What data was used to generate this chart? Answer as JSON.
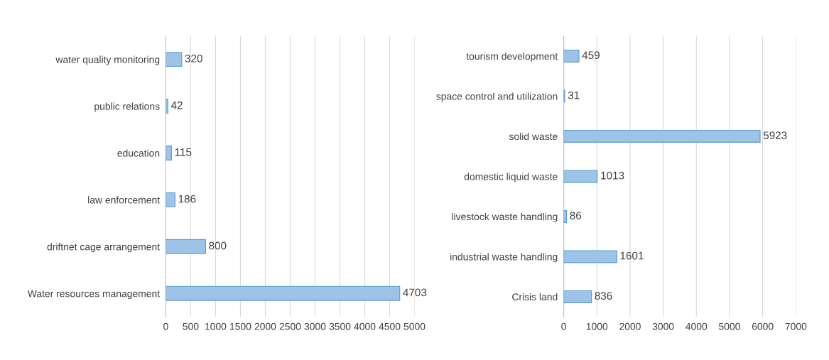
{
  "chart_data": [
    {
      "type": "bar",
      "orientation": "horizontal",
      "categories": [
        "water quality monitoring",
        "public relations",
        "education",
        "law enforcement",
        "driftnet cage arrangement",
        "Water resources management"
      ],
      "values": [
        320,
        42,
        115,
        186,
        800,
        4703
      ],
      "color": "#9dc3e6",
      "xlim": [
        0,
        5000
      ],
      "xticks": [
        0,
        500,
        1000,
        1500,
        2000,
        2500,
        3000,
        3500,
        4000,
        4500,
        5000
      ],
      "grid": "x",
      "data_labels": true
    },
    {
      "type": "bar",
      "orientation": "horizontal",
      "categories": [
        "tourism development",
        "space control and utilization",
        "solid waste",
        "domestic liquid waste",
        "livestock waste handling",
        "industrial waste handling",
        "Crisis land"
      ],
      "values": [
        459,
        31,
        5923,
        1013,
        86,
        1601,
        836
      ],
      "color": "#9dc3e6",
      "xlim": [
        0,
        7000
      ],
      "xticks": [
        0,
        1000,
        2000,
        3000,
        4000,
        5000,
        6000,
        7000
      ],
      "grid": "x",
      "data_labels": true
    }
  ]
}
